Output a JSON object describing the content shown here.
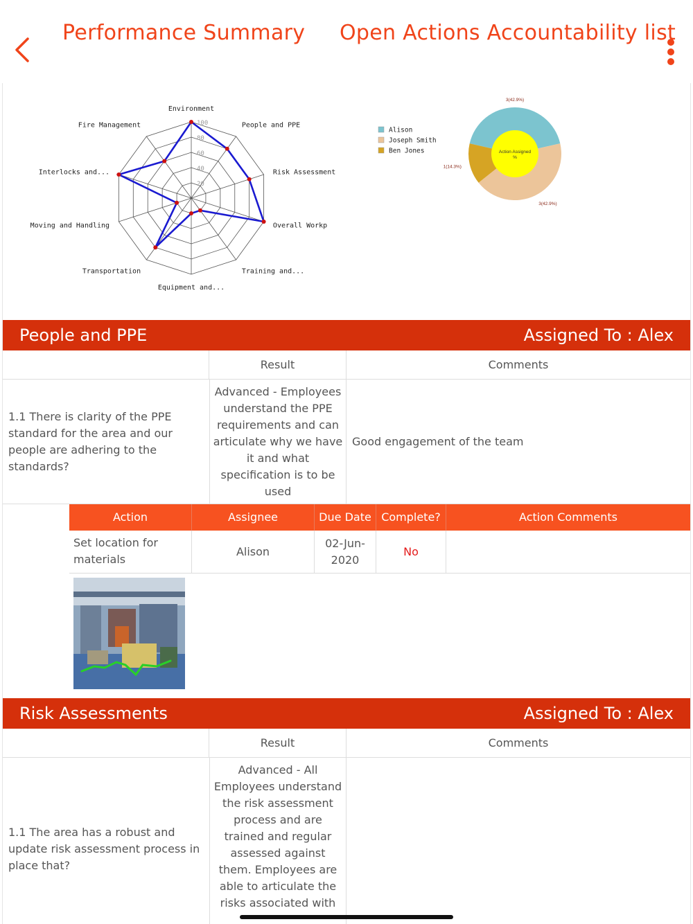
{
  "header": {
    "back_icon": "chevron-left-icon",
    "tab_performance": "Performance Summary",
    "tab_open_actions": "Open Actions Accountability list",
    "menu_icon": "kebab-menu-icon",
    "accent_color": "#f0441a"
  },
  "chart_data": [
    {
      "type": "radar",
      "categories": [
        "Environment",
        "People and PPE",
        "Risk Assessment",
        "Overall Workp",
        "Training and...",
        "Equipment and...",
        "Transportation",
        "Moving and Handling",
        "Interlocks and...",
        "Fire Management"
      ],
      "values": [
        100,
        80,
        80,
        100,
        20,
        20,
        80,
        20,
        100,
        60
      ],
      "tick_labels": [
        "20",
        "40",
        "60",
        "80",
        "100"
      ],
      "ylim": [
        0,
        100
      ],
      "line_color": "#1a1ad0",
      "point_color": "#cc1111"
    },
    {
      "type": "pie",
      "title": "Action Assigned %",
      "series": [
        {
          "name": "Alison",
          "value": 3,
          "label": "3(42.9%)",
          "color": "#7cc4cf"
        },
        {
          "name": "Joseph Smith",
          "value": 3,
          "label": "3(42.9%)",
          "color": "#ecc59a"
        },
        {
          "name": "Ben Jones",
          "value": 1,
          "label": "1(14.3%)",
          "color": "#d6a424"
        }
      ],
      "center_color": "#ffff00",
      "legend": "left"
    }
  ],
  "sections": [
    {
      "name": "People and PPE",
      "assigned": "Assigned To : Alex",
      "col_result": "Result",
      "col_comments": "Comments",
      "question": "1.1 There is clarity of the PPE standard for the area and our people are adhering to the standards?",
      "result": "Advanced - Employees understand the PPE requirements and can articulate why we have it and what specification is to be used",
      "comment": "Good engagement of the team",
      "actions": {
        "headers": [
          "Action",
          "Assignee",
          "Due Date",
          "Complete?",
          "Action Comments"
        ],
        "row": {
          "action": "Set location for materials",
          "assignee": "Alison",
          "due_date": "02-Jun-2020",
          "complete": "No",
          "comments": ""
        }
      }
    },
    {
      "name": "Risk Assessments",
      "assigned": "Assigned To : Alex",
      "col_result": "Result",
      "col_comments": "Comments",
      "question": "1.1 The area has a robust and update risk assessment process in place that?",
      "result": "Advanced - All Employees understand the risk assessment process and are trained and regular assessed against them. Employees are able to articulate the risks associated with",
      "comment": ""
    }
  ]
}
